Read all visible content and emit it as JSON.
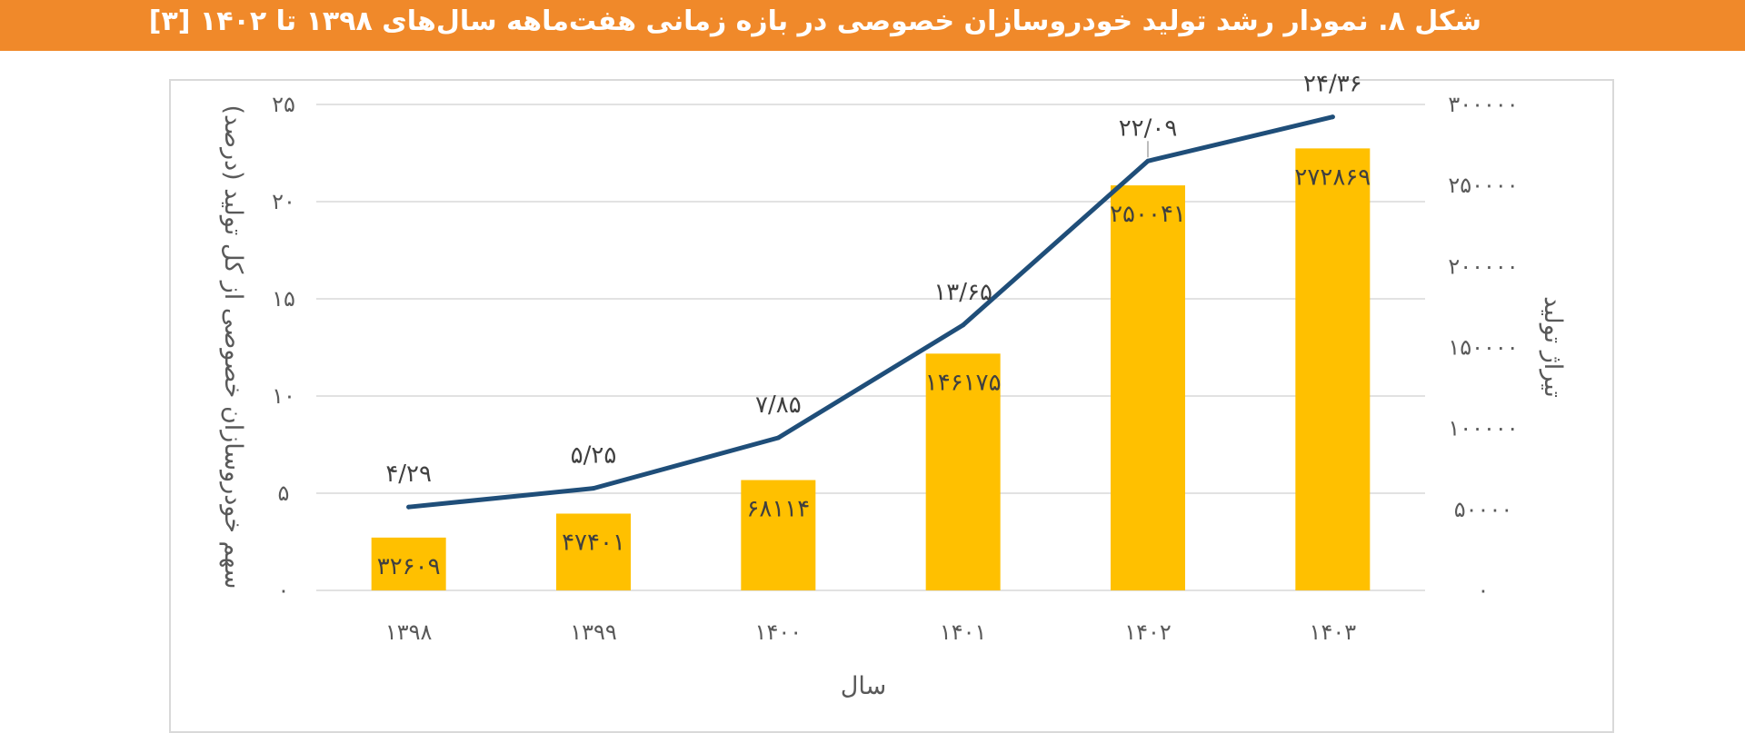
{
  "header": {
    "title": "شکل ۸. نمودار رشد تولید خودروسازان خصوصی در بازه زمانی هفت‌ماهه سال‌های ۱۳۹۸ تا ۱۴۰۲ [۳]"
  },
  "colors": {
    "header_bg": "#f0892a",
    "bar": "#ffc000",
    "line": "#1f4e79",
    "grid": "#d9d9d9",
    "text": "#595959"
  },
  "chart_data": {
    "type": "bar",
    "categories": [
      "۱۳۹۸",
      "۱۳۹۹",
      "۱۴۰۰",
      "۱۴۰۱",
      "۱۴۰۲",
      "۱۴۰۳"
    ],
    "xlabel": "سال",
    "ylabel_left": "سهم خودروسازان خصوصی از کل تولید (درصد)",
    "ylabel_right": "تیراژ تولید",
    "left_axis": {
      "min": 0,
      "max": 25,
      "ticks": [
        0,
        5,
        10,
        15,
        20,
        25
      ],
      "tick_labels": [
        "۰",
        "۵",
        "۱۰",
        "۱۵",
        "۲۰",
        "۲۵"
      ]
    },
    "right_axis": {
      "min": 0,
      "max": 300000,
      "ticks": [
        0,
        50000,
        100000,
        150000,
        200000,
        250000,
        300000
      ],
      "tick_labels": [
        "۰",
        "۵۰۰۰۰",
        "۱۰۰۰۰۰",
        "۱۵۰۰۰۰",
        "۲۰۰۰۰۰",
        "۲۵۰۰۰۰",
        "۳۰۰۰۰۰"
      ]
    },
    "grid": true,
    "series": [
      {
        "kind": "bar",
        "axis": "right",
        "values": [
          32609,
          47401,
          68114,
          146175,
          250041,
          272869
        ],
        "labels": [
          "۳۲۶۰۹",
          "۴۷۴۰۱",
          "۶۸۱۱۴",
          "۱۴۶۱۷۵",
          "۲۵۰۰۴۱",
          "۲۷۲۸۶۹"
        ]
      },
      {
        "kind": "line",
        "axis": "left",
        "values": [
          4.29,
          5.25,
          7.85,
          13.65,
          22.09,
          24.36
        ],
        "labels": [
          "۴/۲۹",
          "۵/۲۵",
          "۷/۸۵",
          "۱۳/۶۵",
          "۲۲/۰۹",
          "۲۴/۳۶"
        ]
      }
    ]
  }
}
